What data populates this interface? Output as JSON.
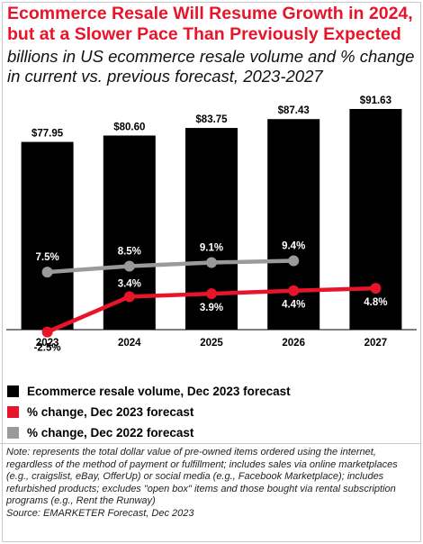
{
  "title_line1": "Ecommerce Resale Will Resume Growth in 2024,",
  "title_line2": "but at a Slower Pace Than Previously Expected",
  "subtitle_line1": "billions in US ecommerce resale volume and % change",
  "subtitle_line2": "in current vs. previous forecast, 2023-2027",
  "colors": {
    "bars": "#000000",
    "current": "#e8152a",
    "previous": "#9a9a9a"
  },
  "chart_data": {
    "type": "bar",
    "categories": [
      "2023",
      "2024",
      "2025",
      "2026",
      "2027"
    ],
    "series": [
      {
        "name": "Ecommerce resale volume, Dec 2023 forecast",
        "kind": "bar",
        "values": [
          77.95,
          80.6,
          83.75,
          87.43,
          91.63
        ],
        "labels": [
          "$77.95",
          "$80.60",
          "$83.75",
          "$87.43",
          "$91.63"
        ]
      },
      {
        "name": "% change, Dec 2023 forecast",
        "kind": "line",
        "values": [
          -2.5,
          3.4,
          3.9,
          4.4,
          4.8
        ],
        "labels": [
          "-2.5%",
          "3.4%",
          "3.9%",
          "4.4%",
          "4.8%"
        ]
      },
      {
        "name": "% change, Dec 2022 forecast",
        "kind": "line",
        "values": [
          7.5,
          8.5,
          9.1,
          9.4,
          null
        ],
        "labels": [
          "7.5%",
          "8.5%",
          "9.1%",
          "9.4%",
          ""
        ]
      }
    ],
    "legend_position": "bottom",
    "grid": false
  },
  "legend": [
    {
      "label": "Ecommerce resale volume, Dec 2023 forecast",
      "color": "#000000"
    },
    {
      "label": "% change, Dec 2023 forecast",
      "color": "#e8152a"
    },
    {
      "label": "% change, Dec 2022 forecast",
      "color": "#9a9a9a"
    }
  ],
  "note": "Note: represents the total dollar value of pre-owned items ordered using the internet, regardless of the method of payment or fulfillment; includes sales via online marketplaces (e.g., craigslist, eBay, OfferUp) or social media (e.g., Facebook Marketplace); includes refurbished products; excludes \"open box\" items and those bought via rental subscription programs (e.g., Rent the Runway)",
  "source": "Source: EMARKETER Forecast, Dec 2023"
}
